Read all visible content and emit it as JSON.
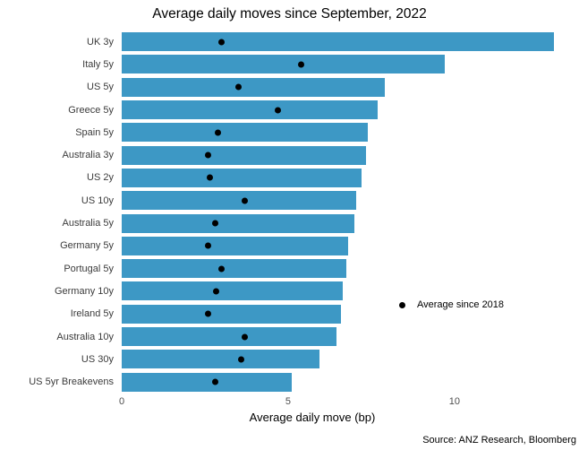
{
  "colors": {
    "bar": "#3d98c5",
    "dot": "#000000",
    "background": "#ffffff"
  },
  "source_note": "Source: ANZ Research, Bloomberg",
  "legend": {
    "label": "Average since 2018"
  },
  "chart_data": {
    "type": "bar",
    "orientation": "horizontal",
    "title": "Average daily moves since September, 2022",
    "xlabel": "Average daily move (bp)",
    "ylabel": "",
    "xlim": [
      0,
      13.74
    ],
    "xticks": [
      0,
      5,
      10
    ],
    "grid": false,
    "legend_position": "inside-right-middle",
    "categories": [
      "UK 3y",
      "Italy 5y",
      "US 5y",
      "Greece 5y",
      "Spain 5y",
      "Australia 3y",
      "US 2y",
      "US 10y",
      "Australia 5y",
      "Germany 5y",
      "Portugal 5y",
      "Germany 10y",
      "Ireland 5y",
      "Australia 10y",
      "US 30y",
      "US 5yr Breakevens"
    ],
    "series": [
      {
        "name": "Average daily move since September 2022",
        "mark": "bar",
        "values": [
          13.0,
          9.7,
          7.9,
          7.7,
          7.4,
          7.35,
          7.2,
          7.05,
          7.0,
          6.8,
          6.75,
          6.65,
          6.6,
          6.45,
          5.95,
          5.1
        ]
      },
      {
        "name": "Average since 2018",
        "mark": "point",
        "values": [
          3.0,
          5.4,
          3.5,
          4.7,
          2.9,
          2.6,
          2.65,
          3.7,
          2.8,
          2.6,
          3.0,
          2.85,
          2.6,
          3.7,
          3.6,
          2.8
        ]
      }
    ]
  }
}
